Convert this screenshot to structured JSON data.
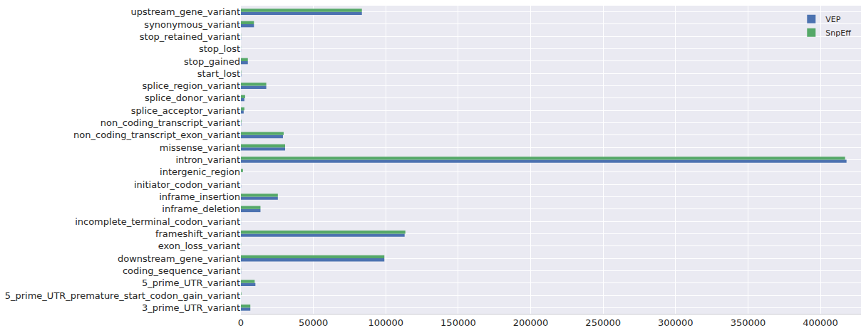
{
  "chart_data": {
    "type": "bar",
    "orientation": "horizontal",
    "categories": [
      "3_prime_UTR_variant",
      "5_prime_UTR_premature_start_codon_gain_variant",
      "5_prime_UTR_variant",
      "coding_sequence_variant",
      "downstream_gene_variant",
      "exon_loss_variant",
      "frameshift_variant",
      "incomplete_terminal_codon_variant",
      "inframe_deletion",
      "inframe_insertion",
      "initiator_codon_variant",
      "intergenic_region",
      "intron_variant",
      "missense_variant",
      "non_coding_transcript_exon_variant",
      "non_coding_transcript_variant",
      "splice_acceptor_variant",
      "splice_donor_variant",
      "splice_region_variant",
      "start_lost",
      "stop_gained",
      "stop_lost",
      "stop_retained_variant",
      "synonymous_variant",
      "upstream_gene_variant"
    ],
    "series": [
      {
        "name": "VEP",
        "color": "#4C72B0",
        "values": [
          6500,
          0,
          10000,
          100,
          99000,
          0,
          113000,
          50,
          13500,
          25500,
          100,
          0,
          418000,
          30500,
          29000,
          200,
          1900,
          2400,
          17500,
          200,
          4800,
          50,
          100,
          9000,
          83500
        ]
      },
      {
        "name": "SnpEff",
        "color": "#55A868",
        "values": [
          6500,
          300,
          9500,
          100,
          99000,
          100,
          113500,
          50,
          13500,
          25500,
          0,
          1400,
          417000,
          30500,
          29500,
          300,
          2400,
          2900,
          17500,
          200,
          4800,
          50,
          100,
          9000,
          83500
        ]
      }
    ],
    "xlim": [
      0,
      428000
    ],
    "xticks": [
      0,
      50000,
      100000,
      150000,
      200000,
      250000,
      300000,
      350000,
      400000
    ],
    "grid": true,
    "legend": "upper right"
  }
}
